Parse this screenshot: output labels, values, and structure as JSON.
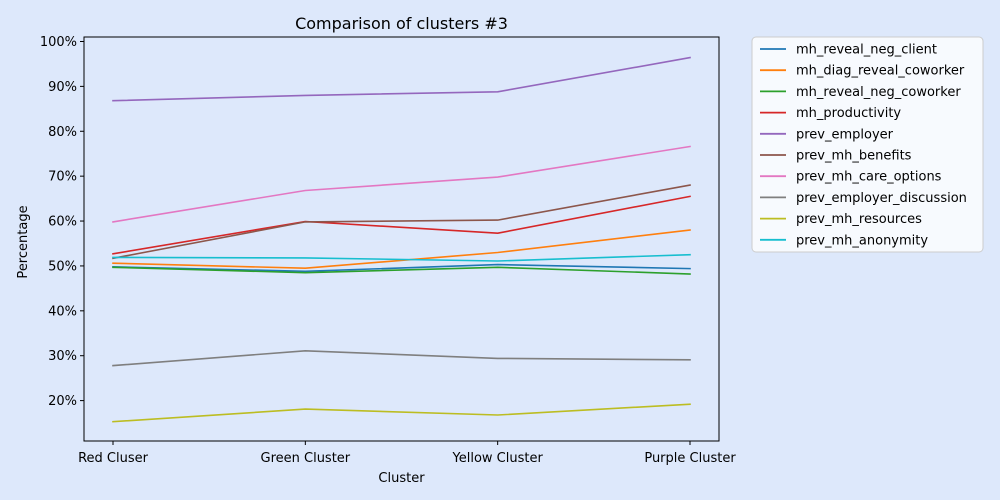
{
  "chart_data": {
    "type": "line",
    "title": "Comparison of clusters #3",
    "xlabel": "Cluster",
    "ylabel": "Percentage",
    "categories": [
      "Red Cluser",
      "Green Cluster",
      "Yellow Cluster",
      "Purple Cluster"
    ],
    "ylim": [
      11,
      101
    ],
    "yticks": [
      20,
      30,
      40,
      50,
      60,
      70,
      80,
      90,
      100
    ],
    "ytick_labels": [
      "20%",
      "30%",
      "40%",
      "50%",
      "60%",
      "70%",
      "80%",
      "90%",
      "100%"
    ],
    "grid": false,
    "legend_position": "outside-right",
    "series": [
      {
        "name": "mh_reveal_neg_client",
        "color": "#1f77b4",
        "values": [
          49.8,
          48.8,
          50.3,
          49.4
        ]
      },
      {
        "name": "mh_diag_reveal_coworker",
        "color": "#ff7f0e",
        "values": [
          50.6,
          49.5,
          53.0,
          58.0
        ]
      },
      {
        "name": "mh_reveal_neg_coworker",
        "color": "#2ca02c",
        "values": [
          49.7,
          48.5,
          49.7,
          48.2
        ]
      },
      {
        "name": "mh_productivity",
        "color": "#d62728",
        "values": [
          52.7,
          59.9,
          57.3,
          65.5
        ]
      },
      {
        "name": "prev_employer",
        "color": "#9467bd",
        "values": [
          86.8,
          88.0,
          88.8,
          96.4
        ]
      },
      {
        "name": "prev_mh_benefits",
        "color": "#8c564b",
        "values": [
          51.7,
          59.8,
          60.2,
          68.0
        ]
      },
      {
        "name": "prev_mh_care_options",
        "color": "#e377c2",
        "values": [
          59.8,
          66.8,
          69.8,
          76.6
        ]
      },
      {
        "name": "prev_employer_discussion",
        "color": "#7f7f7f",
        "values": [
          27.8,
          31.1,
          29.4,
          29.1
        ]
      },
      {
        "name": "prev_mh_resources",
        "color": "#bcbd22",
        "values": [
          15.3,
          18.1,
          16.8,
          19.2
        ]
      },
      {
        "name": "prev_mh_anonymity",
        "color": "#17becf",
        "values": [
          51.9,
          51.8,
          51.1,
          52.5
        ]
      }
    ]
  }
}
